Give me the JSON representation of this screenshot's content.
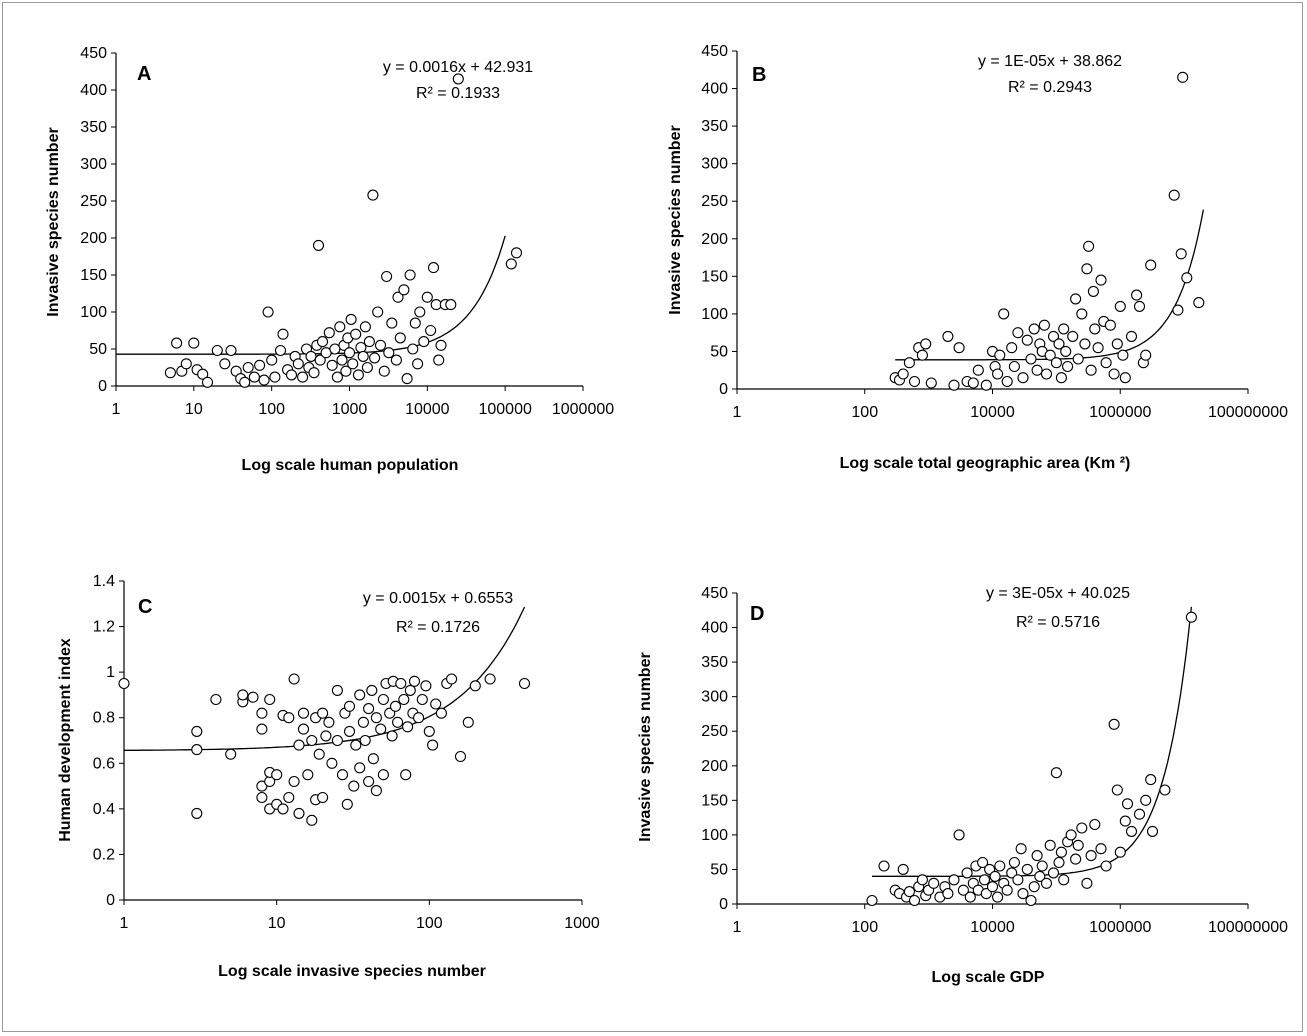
{
  "chart_data": [
    {
      "type": "scatter",
      "panel": "A",
      "xlabel": "Log scale human population",
      "ylabel": "Invasive species number",
      "xscale": "log",
      "xlim": [
        1,
        1000000
      ],
      "ylim": [
        0,
        450
      ],
      "xticks": [
        "1",
        "10",
        "100",
        "1000",
        "10000",
        "100000",
        "1000000"
      ],
      "yticks": [
        "0",
        "50",
        "100",
        "150",
        "200",
        "250",
        "300",
        "350",
        "400",
        "450"
      ],
      "equation": "y = 0.0016x  + 42.931",
      "r2_label": "R² = 0.1933",
      "trendline": {
        "slope": 0.0016,
        "intercept": 42.931
      },
      "points": [
        [
          5,
          18
        ],
        [
          6,
          58
        ],
        [
          7,
          20
        ],
        [
          8,
          30
        ],
        [
          10,
          58
        ],
        [
          11,
          22
        ],
        [
          13,
          16
        ],
        [
          15,
          5
        ],
        [
          20,
          48
        ],
        [
          25,
          30
        ],
        [
          30,
          48
        ],
        [
          35,
          20
        ],
        [
          40,
          10
        ],
        [
          45,
          5
        ],
        [
          50,
          25
        ],
        [
          60,
          12
        ],
        [
          70,
          28
        ],
        [
          80,
          8
        ],
        [
          90,
          100
        ],
        [
          100,
          35
        ],
        [
          110,
          12
        ],
        [
          130,
          48
        ],
        [
          140,
          70
        ],
        [
          160,
          22
        ],
        [
          180,
          15
        ],
        [
          200,
          40
        ],
        [
          220,
          30
        ],
        [
          250,
          12
        ],
        [
          280,
          50
        ],
        [
          300,
          25
        ],
        [
          320,
          40
        ],
        [
          350,
          18
        ],
        [
          380,
          55
        ],
        [
          400,
          190
        ],
        [
          420,
          35
        ],
        [
          450,
          60
        ],
        [
          500,
          45
        ],
        [
          550,
          72
        ],
        [
          600,
          28
        ],
        [
          650,
          50
        ],
        [
          700,
          12
        ],
        [
          750,
          80
        ],
        [
          800,
          35
        ],
        [
          850,
          55
        ],
        [
          900,
          20
        ],
        [
          950,
          65
        ],
        [
          1000,
          45
        ],
        [
          1050,
          90
        ],
        [
          1100,
          30
        ],
        [
          1200,
          70
        ],
        [
          1300,
          15
        ],
        [
          1400,
          52
        ],
        [
          1500,
          40
        ],
        [
          1600,
          80
        ],
        [
          1700,
          25
        ],
        [
          1800,
          60
        ],
        [
          2000,
          258
        ],
        [
          2100,
          38
        ],
        [
          2300,
          100
        ],
        [
          2500,
          55
        ],
        [
          2800,
          20
        ],
        [
          3000,
          148
        ],
        [
          3200,
          45
        ],
        [
          3500,
          85
        ],
        [
          4000,
          35
        ],
        [
          4200,
          120
        ],
        [
          4500,
          65
        ],
        [
          5000,
          130
        ],
        [
          5500,
          10
        ],
        [
          6000,
          150
        ],
        [
          6500,
          50
        ],
        [
          7000,
          85
        ],
        [
          7500,
          30
        ],
        [
          8000,
          100
        ],
        [
          9000,
          60
        ],
        [
          10000,
          120
        ],
        [
          11000,
          75
        ],
        [
          12000,
          160
        ],
        [
          13000,
          110
        ],
        [
          14000,
          35
        ],
        [
          15000,
          55
        ],
        [
          17000,
          110
        ],
        [
          20000,
          110
        ],
        [
          25000,
          415
        ],
        [
          120000,
          165
        ],
        [
          140000,
          180
        ]
      ]
    },
    {
      "type": "scatter",
      "panel": "B",
      "xlabel": "Log scale total geographic area (Km ²)",
      "ylabel": "Invasive species number",
      "xscale": "log",
      "xlim": [
        1,
        100000000
      ],
      "ylim": [
        0,
        450
      ],
      "xticks": [
        "1",
        "100",
        "10000",
        "1000000",
        "100000000"
      ],
      "yticks": [
        "0",
        "50",
        "100",
        "150",
        "200",
        "250",
        "300",
        "350",
        "400",
        "450"
      ],
      "equation": "y = 1E-05x  + 38.862",
      "r2_label": "R² = 0.2943",
      "trendline": {
        "slope": 1e-05,
        "intercept": 38.862
      },
      "points": [
        [
          300,
          15
        ],
        [
          350,
          12
        ],
        [
          400,
          20
        ],
        [
          500,
          35
        ],
        [
          600,
          10
        ],
        [
          700,
          55
        ],
        [
          800,
          45
        ],
        [
          900,
          60
        ],
        [
          1100,
          8
        ],
        [
          2000,
          70
        ],
        [
          2500,
          5
        ],
        [
          3000,
          55
        ],
        [
          4000,
          10
        ],
        [
          5000,
          8
        ],
        [
          6000,
          25
        ],
        [
          8000,
          5
        ],
        [
          10000,
          50
        ],
        [
          11000,
          30
        ],
        [
          12000,
          20
        ],
        [
          13000,
          45
        ],
        [
          15000,
          100
        ],
        [
          17000,
          10
        ],
        [
          20000,
          55
        ],
        [
          22000,
          30
        ],
        [
          25000,
          75
        ],
        [
          30000,
          15
        ],
        [
          35000,
          65
        ],
        [
          40000,
          40
        ],
        [
          45000,
          80
        ],
        [
          50000,
          25
        ],
        [
          55000,
          60
        ],
        [
          60000,
          50
        ],
        [
          65000,
          85
        ],
        [
          70000,
          20
        ],
        [
          80000,
          45
        ],
        [
          90000,
          70
        ],
        [
          100000,
          35
        ],
        [
          110000,
          60
        ],
        [
          120000,
          15
        ],
        [
          130000,
          80
        ],
        [
          140000,
          50
        ],
        [
          150000,
          30
        ],
        [
          180000,
          70
        ],
        [
          200000,
          120
        ],
        [
          220000,
          40
        ],
        [
          250000,
          100
        ],
        [
          280000,
          60
        ],
        [
          300000,
          160
        ],
        [
          320000,
          190
        ],
        [
          350000,
          25
        ],
        [
          380000,
          130
        ],
        [
          400000,
          80
        ],
        [
          450000,
          55
        ],
        [
          500000,
          145
        ],
        [
          550000,
          90
        ],
        [
          600000,
          35
        ],
        [
          700000,
          85
        ],
        [
          800000,
          20
        ],
        [
          900000,
          60
        ],
        [
          1000000,
          110
        ],
        [
          1100000,
          45
        ],
        [
          1200000,
          15
        ],
        [
          1500000,
          70
        ],
        [
          1800000,
          125
        ],
        [
          2000000,
          110
        ],
        [
          2300000,
          35
        ],
        [
          2500000,
          45
        ],
        [
          3000000,
          165
        ],
        [
          7000000,
          258
        ],
        [
          8000000,
          105
        ],
        [
          9000000,
          180
        ],
        [
          9500000,
          415
        ],
        [
          11000000,
          148
        ],
        [
          17000000,
          115
        ]
      ]
    },
    {
      "type": "scatter",
      "panel": "C",
      "xlabel": "Log scale invasive species number",
      "ylabel": "Human development index",
      "xscale": "log",
      "xlim": [
        1,
        1000
      ],
      "ylim": [
        0,
        1.4
      ],
      "xticks": [
        "1",
        "10",
        "100",
        "1000"
      ],
      "yticks": [
        "0",
        "0.2",
        "0.4",
        "0.6",
        "0.8",
        "1",
        "1.2",
        "1.4"
      ],
      "equation": "y = 0.0015x  + 0.6553",
      "r2_label": "R² = 0.1726",
      "trendline": {
        "slope": 0.0015,
        "intercept": 0.6553
      },
      "points": [
        [
          1,
          0.95
        ],
        [
          3,
          0.74
        ],
        [
          3,
          0.66
        ],
        [
          3,
          0.38
        ],
        [
          4,
          0.88
        ],
        [
          5,
          0.64
        ],
        [
          6,
          0.87
        ],
        [
          6,
          0.9
        ],
        [
          7,
          0.89
        ],
        [
          8,
          0.82
        ],
        [
          8,
          0.75
        ],
        [
          8,
          0.5
        ],
        [
          8,
          0.45
        ],
        [
          9,
          0.52
        ],
        [
          9,
          0.88
        ],
        [
          9,
          0.56
        ],
        [
          9,
          0.4
        ],
        [
          10,
          0.55
        ],
        [
          10,
          0.42
        ],
        [
          11,
          0.81
        ],
        [
          11,
          0.4
        ],
        [
          12,
          0.8
        ],
        [
          12,
          0.45
        ],
        [
          13,
          0.97
        ],
        [
          13,
          0.52
        ],
        [
          14,
          0.68
        ],
        [
          14,
          0.38
        ],
        [
          15,
          0.82
        ],
        [
          15,
          0.75
        ],
        [
          16,
          0.55
        ],
        [
          17,
          0.7
        ],
        [
          17,
          0.35
        ],
        [
          18,
          0.8
        ],
        [
          18,
          0.44
        ],
        [
          19,
          0.64
        ],
        [
          20,
          0.82
        ],
        [
          20,
          0.45
        ],
        [
          21,
          0.72
        ],
        [
          22,
          0.78
        ],
        [
          23,
          0.6
        ],
        [
          25,
          0.92
        ],
        [
          25,
          0.7
        ],
        [
          27,
          0.55
        ],
        [
          28,
          0.82
        ],
        [
          29,
          0.42
        ],
        [
          30,
          0.74
        ],
        [
          30,
          0.85
        ],
        [
          32,
          0.5
        ],
        [
          33,
          0.68
        ],
        [
          35,
          0.9
        ],
        [
          35,
          0.58
        ],
        [
          37,
          0.78
        ],
        [
          38,
          0.7
        ],
        [
          40,
          0.84
        ],
        [
          40,
          0.52
        ],
        [
          42,
          0.92
        ],
        [
          43,
          0.62
        ],
        [
          45,
          0.8
        ],
        [
          45,
          0.48
        ],
        [
          48,
          0.75
        ],
        [
          50,
          0.88
        ],
        [
          50,
          0.55
        ],
        [
          52,
          0.95
        ],
        [
          55,
          0.82
        ],
        [
          57,
          0.72
        ],
        [
          58,
          0.96
        ],
        [
          60,
          0.85
        ],
        [
          62,
          0.78
        ],
        [
          65,
          0.95
        ],
        [
          68,
          0.88
        ],
        [
          70,
          0.55
        ],
        [
          72,
          0.76
        ],
        [
          75,
          0.92
        ],
        [
          78,
          0.82
        ],
        [
          80,
          0.96
        ],
        [
          85,
          0.8
        ],
        [
          90,
          0.88
        ],
        [
          95,
          0.94
        ],
        [
          100,
          0.74
        ],
        [
          105,
          0.68
        ],
        [
          110,
          0.86
        ],
        [
          120,
          0.82
        ],
        [
          130,
          0.95
        ],
        [
          140,
          0.97
        ],
        [
          160,
          0.63
        ],
        [
          180,
          0.78
        ],
        [
          200,
          0.94
        ],
        [
          250,
          0.97
        ],
        [
          420,
          0.95
        ]
      ]
    },
    {
      "type": "scatter",
      "panel": "D",
      "xlabel": "Log scale GDP",
      "ylabel": "Invasive species number",
      "xscale": "log",
      "xlim": [
        1,
        100000000
      ],
      "ylim": [
        0,
        450
      ],
      "xticks": [
        "1",
        "100",
        "10000",
        "1000000",
        "100000000"
      ],
      "yticks": [
        "0",
        "50",
        "100",
        "150",
        "200",
        "250",
        "300",
        "350",
        "400",
        "450"
      ],
      "equation": "y = 3E-05x  + 40.025",
      "r2_label": "R² = 0.5716",
      "trendline": {
        "slope": 3e-05,
        "intercept": 40.025
      },
      "points": [
        [
          130,
          5
        ],
        [
          200,
          55
        ],
        [
          300,
          20
        ],
        [
          350,
          15
        ],
        [
          400,
          50
        ],
        [
          450,
          10
        ],
        [
          500,
          18
        ],
        [
          600,
          5
        ],
        [
          700,
          25
        ],
        [
          800,
          35
        ],
        [
          900,
          12
        ],
        [
          1000,
          20
        ],
        [
          1200,
          30
        ],
        [
          1500,
          10
        ],
        [
          1800,
          25
        ],
        [
          2000,
          15
        ],
        [
          2500,
          35
        ],
        [
          3000,
          100
        ],
        [
          3500,
          20
        ],
        [
          4000,
          45
        ],
        [
          4500,
          10
        ],
        [
          5000,
          30
        ],
        [
          5500,
          55
        ],
        [
          6000,
          20
        ],
        [
          7000,
          60
        ],
        [
          7500,
          35
        ],
        [
          8000,
          15
        ],
        [
          9000,
          50
        ],
        [
          10000,
          25
        ],
        [
          11000,
          40
        ],
        [
          12000,
          10
        ],
        [
          13000,
          55
        ],
        [
          15000,
          30
        ],
        [
          17000,
          20
        ],
        [
          20000,
          45
        ],
        [
          22000,
          60
        ],
        [
          25000,
          35
        ],
        [
          28000,
          80
        ],
        [
          30000,
          15
        ],
        [
          35000,
          50
        ],
        [
          40000,
          5
        ],
        [
          45000,
          25
        ],
        [
          50000,
          70
        ],
        [
          55000,
          40
        ],
        [
          60000,
          55
        ],
        [
          70000,
          30
        ],
        [
          80000,
          85
        ],
        [
          90000,
          45
        ],
        [
          100000,
          190
        ],
        [
          110000,
          60
        ],
        [
          120000,
          75
        ],
        [
          130000,
          35
        ],
        [
          150000,
          90
        ],
        [
          170000,
          100
        ],
        [
          200000,
          65
        ],
        [
          220000,
          85
        ],
        [
          250000,
          110
        ],
        [
          300000,
          30
        ],
        [
          350000,
          70
        ],
        [
          400000,
          115
        ],
        [
          500000,
          80
        ],
        [
          600000,
          55
        ],
        [
          800000,
          260
        ],
        [
          900000,
          165
        ],
        [
          1000000,
          75
        ],
        [
          1200000,
          120
        ],
        [
          1300000,
          145
        ],
        [
          1500000,
          105
        ],
        [
          2000000,
          130
        ],
        [
          2500000,
          150
        ],
        [
          3000000,
          180
        ],
        [
          3200000,
          105
        ],
        [
          5000000,
          165
        ],
        [
          13000000,
          415
        ]
      ]
    }
  ]
}
